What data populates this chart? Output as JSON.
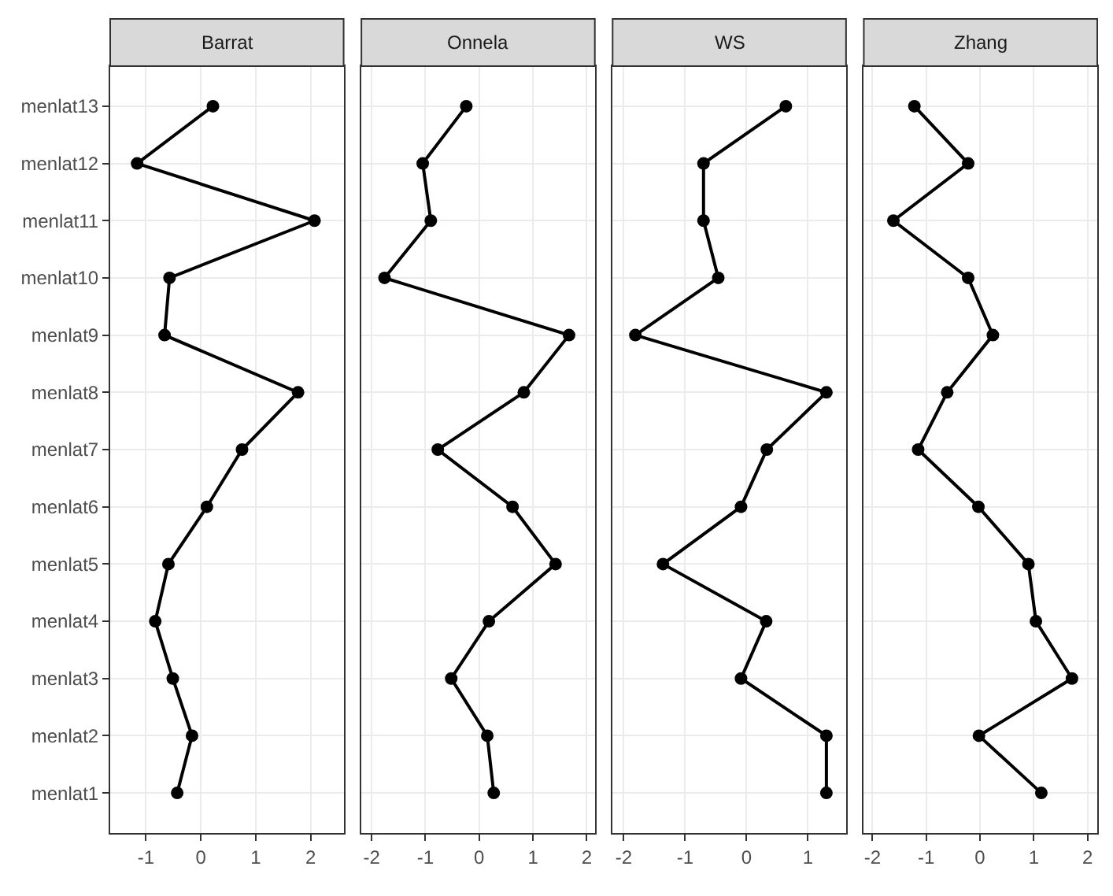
{
  "chart_data": [
    {
      "type": "line",
      "title": "Barrat",
      "orientation": "horizontal",
      "categories": [
        "menlat13",
        "menlat12",
        "menlat11",
        "menlat10",
        "menlat9",
        "menlat8",
        "menlat7",
        "menlat6",
        "menlat5",
        "menlat4",
        "menlat3",
        "menlat2",
        "menlat1"
      ],
      "series": [
        {
          "color": "#000000",
          "values": [
            0.22,
            -1.16,
            2.07,
            -0.57,
            -0.66,
            1.77,
            0.75,
            0.11,
            -0.59,
            -0.83,
            -0.51,
            -0.16,
            -0.43
          ]
        }
      ],
      "xlim": [
        -1.65,
        2.6
      ],
      "xticks": [
        -1,
        0,
        1,
        2
      ],
      "grid": true,
      "marker": "circle",
      "line_style": "solid"
    },
    {
      "type": "line",
      "title": "Onnela",
      "orientation": "horizontal",
      "categories": [
        "menlat13",
        "menlat12",
        "menlat11",
        "menlat10",
        "menlat9",
        "menlat8",
        "menlat7",
        "menlat6",
        "menlat5",
        "menlat4",
        "menlat3",
        "menlat2",
        "menlat1"
      ],
      "series": [
        {
          "color": "#000000",
          "values": [
            -0.24,
            -1.05,
            -0.9,
            -1.76,
            1.67,
            0.83,
            -0.77,
            0.62,
            1.42,
            0.18,
            -0.52,
            0.15,
            0.27
          ]
        }
      ],
      "xlim": [
        -2.19,
        2.15
      ],
      "xticks": [
        -2,
        -1,
        0,
        1,
        2
      ],
      "grid": true,
      "marker": "circle",
      "line_style": "solid",
      "tick_labels": "x"
    },
    {
      "type": "line",
      "title": "WS",
      "orientation": "horizontal",
      "categories": [
        "menlat13",
        "menlat12",
        "menlat11",
        "menlat10",
        "menlat9",
        "menlat8",
        "menlat7",
        "menlat6",
        "menlat5",
        "menlat4",
        "menlat3",
        "menlat2",
        "menlat1"
      ],
      "series": [
        {
          "color": "#000000",
          "values": [
            0.64,
            -0.7,
            -0.7,
            -0.46,
            -1.81,
            1.3,
            0.33,
            -0.09,
            -1.36,
            0.32,
            -0.09,
            1.3,
            1.3
          ]
        }
      ],
      "xlim": [
        -2.18,
        1.62
      ],
      "xticks": [
        -2,
        -1,
        0,
        1
      ],
      "grid": true,
      "marker": "circle",
      "line_style": "solid",
      "tick_labels": "x"
    },
    {
      "type": "line",
      "title": "Zhang",
      "orientation": "horizontal",
      "categories": [
        "menlat13",
        "menlat12",
        "menlat11",
        "menlat10",
        "menlat9",
        "menlat8",
        "menlat7",
        "menlat6",
        "menlat5",
        "menlat4",
        "menlat3",
        "menlat2",
        "menlat1"
      ],
      "series": [
        {
          "color": "#000000",
          "values": [
            -1.22,
            -0.22,
            -1.61,
            -0.22,
            0.24,
            -0.61,
            -1.15,
            -0.03,
            0.9,
            1.04,
            1.71,
            -0.02,
            1.14
          ]
        }
      ],
      "xlim": [
        -2.16,
        2.18
      ],
      "xticks": [
        -2,
        -1,
        0,
        1,
        2
      ],
      "grid": true,
      "marker": "circle",
      "line_style": "solid",
      "tick_labels": "x"
    }
  ]
}
